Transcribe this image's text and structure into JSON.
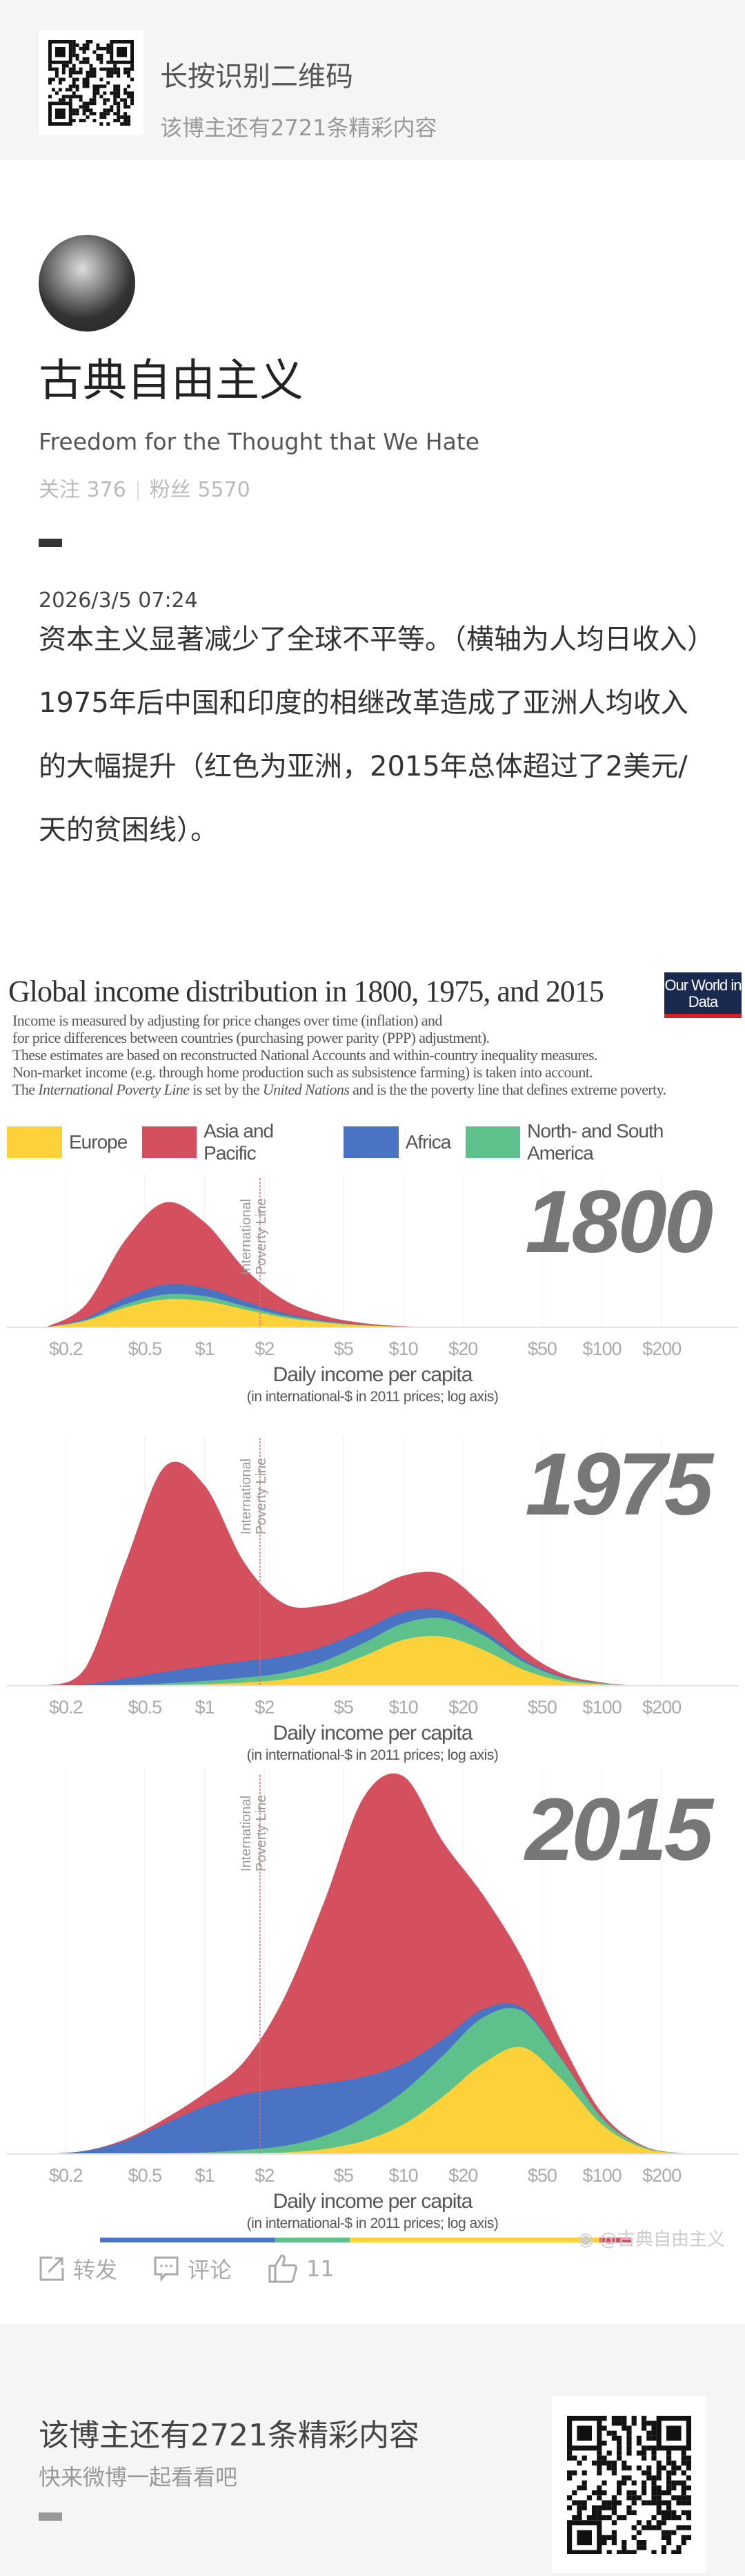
{
  "banner": {
    "title": "长按识别二维码",
    "subtitle": "该博主还有2721条精彩内容"
  },
  "profile": {
    "name": "古典自由主义",
    "bio": "Freedom for the Thought that We Hate",
    "following_label": "关注",
    "following": "376",
    "followers_label": "粉丝",
    "followers": "5570"
  },
  "post": {
    "date": "2026/3/5 07:24",
    "paragraphs": [
      "资本主义显著减少了全球不平等。（横轴为人均日收入）",
      "1975年后中国和印度的相继改革造成了亚洲人均收入的大幅提升（红色为亚洲，2015年总体超过了2美元/天的贫困线）。"
    ],
    "watermark": "@古典自由主义"
  },
  "actions": {
    "repost": "转发",
    "comment": "评论",
    "likes": "11"
  },
  "footer": {
    "title": "该博主还有2721条精彩内容",
    "subtitle": "快来微博一起看看吧"
  },
  "colors": {
    "europe": "#fdd13a",
    "asia": "#d4505e",
    "africa": "#4a73c4",
    "americas": "#5ec08a"
  },
  "chart_data": {
    "type": "area",
    "title": "Global income distribution in 1800, 1975, and 2015",
    "logo": "Our World in Data",
    "subtitle_lines": [
      "Income is measured by adjusting for price changes over time (inflation) and",
      "for price differences between countries (purchasing power parity (PPP) adjustment).",
      "These estimates are based on reconstructed National Accounts and within-country inequality measures.",
      "Non-market income (e.g. through home production such as subsistence farming) is taken into account."
    ],
    "note_parts": [
      "The ",
      "International Poverty Line",
      " is set by the ",
      "United Nations",
      " and is the the poverty line that defines extreme poverty."
    ],
    "legend": [
      "Europe",
      "Asia and Pacific",
      "Africa",
      "North- and South America"
    ],
    "xlabel": "Daily income per capita",
    "xlabel_sub": "(in international-$ in 2011 prices; log axis)",
    "x_scale": "log",
    "x_ticks": [
      {
        "v": 0.2,
        "label": "$0.2"
      },
      {
        "v": 0.5,
        "label": "$0.5"
      },
      {
        "v": 1,
        "label": "$1"
      },
      {
        "v": 2,
        "label": "$2"
      },
      {
        "v": 5,
        "label": "$5"
      },
      {
        "v": 10,
        "label": "$10"
      },
      {
        "v": 20,
        "label": "$20"
      },
      {
        "v": 50,
        "label": "$50"
      },
      {
        "v": 100,
        "label": "$100"
      },
      {
        "v": 200,
        "label": "$200"
      }
    ],
    "poverty_line": {
      "value": 1.9,
      "label_lines": [
        "International",
        "Poverty Line"
      ]
    },
    "x_log10": [
      -0.8,
      -0.6,
      -0.4,
      -0.2,
      0,
      0.2,
      0.4,
      0.6,
      0.8,
      1.0,
      1.2,
      1.4,
      1.6,
      1.8,
      2.0,
      2.2,
      2.4,
      2.6
    ],
    "stack_order": [
      "Europe",
      "North- and South America",
      "Africa",
      "Asia and Pacific"
    ],
    "panels": [
      {
        "year": "1800",
        "series": [
          {
            "name": "Europe",
            "values": [
              0,
              4,
              12,
              17,
              16,
              11,
              6,
              3,
              1.2,
              0.4,
              0.1,
              0,
              0,
              0,
              0,
              0,
              0,
              0
            ]
          },
          {
            "name": "North- and South America",
            "values": [
              0,
              0.5,
              2,
              3,
              3,
              2,
              1.2,
              0.6,
              0.2,
              0,
              0,
              0,
              0,
              0,
              0,
              0,
              0,
              0
            ]
          },
          {
            "name": "Africa",
            "values": [
              0,
              1,
              4,
              6,
              5,
              3,
              1.5,
              0.5,
              0.2,
              0,
              0,
              0,
              0,
              0,
              0,
              0,
              0,
              0
            ]
          },
          {
            "name": "Asia and Pacific",
            "values": [
              0,
              8,
              35,
              50,
              40,
              20,
              8,
              3,
              1,
              0.3,
              0,
              0,
              0,
              0,
              0,
              0,
              0,
              0
            ]
          }
        ]
      },
      {
        "year": "1975",
        "series": [
          {
            "name": "Europe",
            "values": [
              0,
              0,
              0,
              0.5,
              1,
              2,
              4,
              9,
              18,
              28,
              30,
              22,
              10,
              3,
              1,
              0,
              0,
              0
            ]
          },
          {
            "name": "North- and South America",
            "values": [
              0,
              0,
              0.5,
              1,
              2,
              3,
              4,
              6,
              8,
              10,
              11,
              9,
              5,
              2,
              0.5,
              0,
              0,
              0
            ]
          },
          {
            "name": "Africa",
            "values": [
              0,
              1,
              4,
              7,
              9,
              10,
              10,
              9,
              8,
              7,
              5,
              3,
              1.5,
              0.5,
              0,
              0,
              0,
              0
            ]
          },
          {
            "name": "Asia and Pacific",
            "values": [
              0,
              10,
              70,
              125,
              110,
              60,
              32,
              25,
              22,
              22,
              22,
              15,
              6,
              2,
              0.5,
              0,
              0,
              0
            ]
          }
        ]
      },
      {
        "year": "2015",
        "series": [
          {
            "name": "Europe",
            "values": [
              0,
              0,
              0,
              0,
              0,
              0.5,
              1,
              3,
              8,
              18,
              35,
              55,
              65,
              45,
              18,
              4,
              0.5,
              0
            ]
          },
          {
            "name": "North- and South America",
            "values": [
              0,
              0,
              0,
              0.5,
              1,
              2,
              4,
              8,
              14,
              20,
              25,
              28,
              22,
              12,
              4,
              1,
              0,
              0
            ]
          },
          {
            "name": "Africa",
            "values": [
              0,
              2,
              8,
              18,
              28,
              34,
              35,
              32,
              25,
              17,
              10,
              5,
              2,
              0.5,
              0,
              0,
              0,
              0
            ]
          },
          {
            "name": "Asia and Pacific",
            "values": [
              0,
              0,
              1,
              3,
              8,
              20,
              55,
              110,
              170,
              175,
              120,
              70,
              30,
              10,
              3,
              0.5,
              0,
              0
            ]
          }
        ]
      }
    ]
  }
}
